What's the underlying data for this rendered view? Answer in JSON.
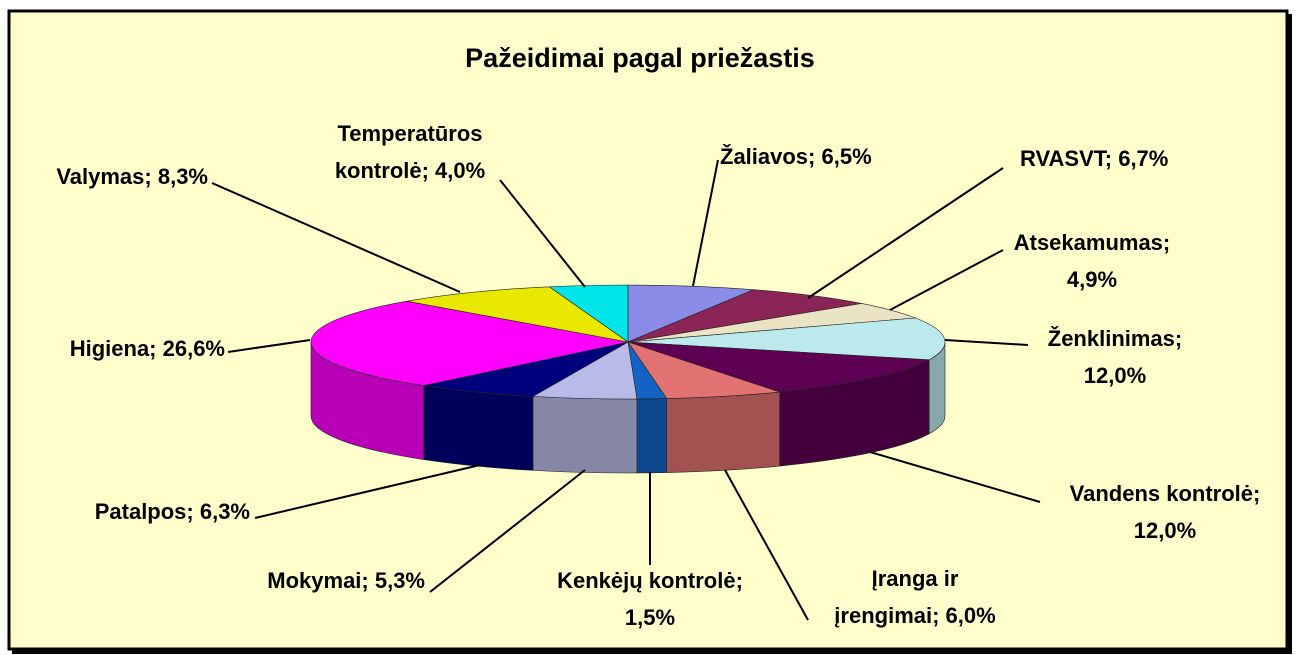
{
  "chart_data": {
    "type": "pie3d",
    "title": "Pažeidimai pagal priežastis",
    "values": [
      6.5,
      6.7,
      4.9,
      12.0,
      12.0,
      6.0,
      1.5,
      5.3,
      6.3,
      26.6,
      8.3,
      4.0
    ],
    "value_labels": [
      "Žaliavos; 6,5%",
      "RVASVT; 6,7%",
      "Atsekamumas; 4,9%",
      "Ženklinimas; 12,0%",
      "Vandens kontrolė; 12,0%",
      "Įranga ir įrengimai; 6,0%",
      "Kenkėjų kontrolė; 1,5%",
      "Mokymai; 5,3%",
      "Patalpos; 6,3%",
      "Higiena; 26,6%",
      "Valymas; 8,3%",
      "Temperatūros kontrolė; 4,0%"
    ],
    "colors": [
      "#8b8be8",
      "#8b2457",
      "#ebe4c4",
      "#bce9ec",
      "#5e0054",
      "#e37272",
      "#1462c4",
      "#babae8",
      "#00007e",
      "#ff00ff",
      "#e8e800",
      "#00e4ea"
    ]
  }
}
